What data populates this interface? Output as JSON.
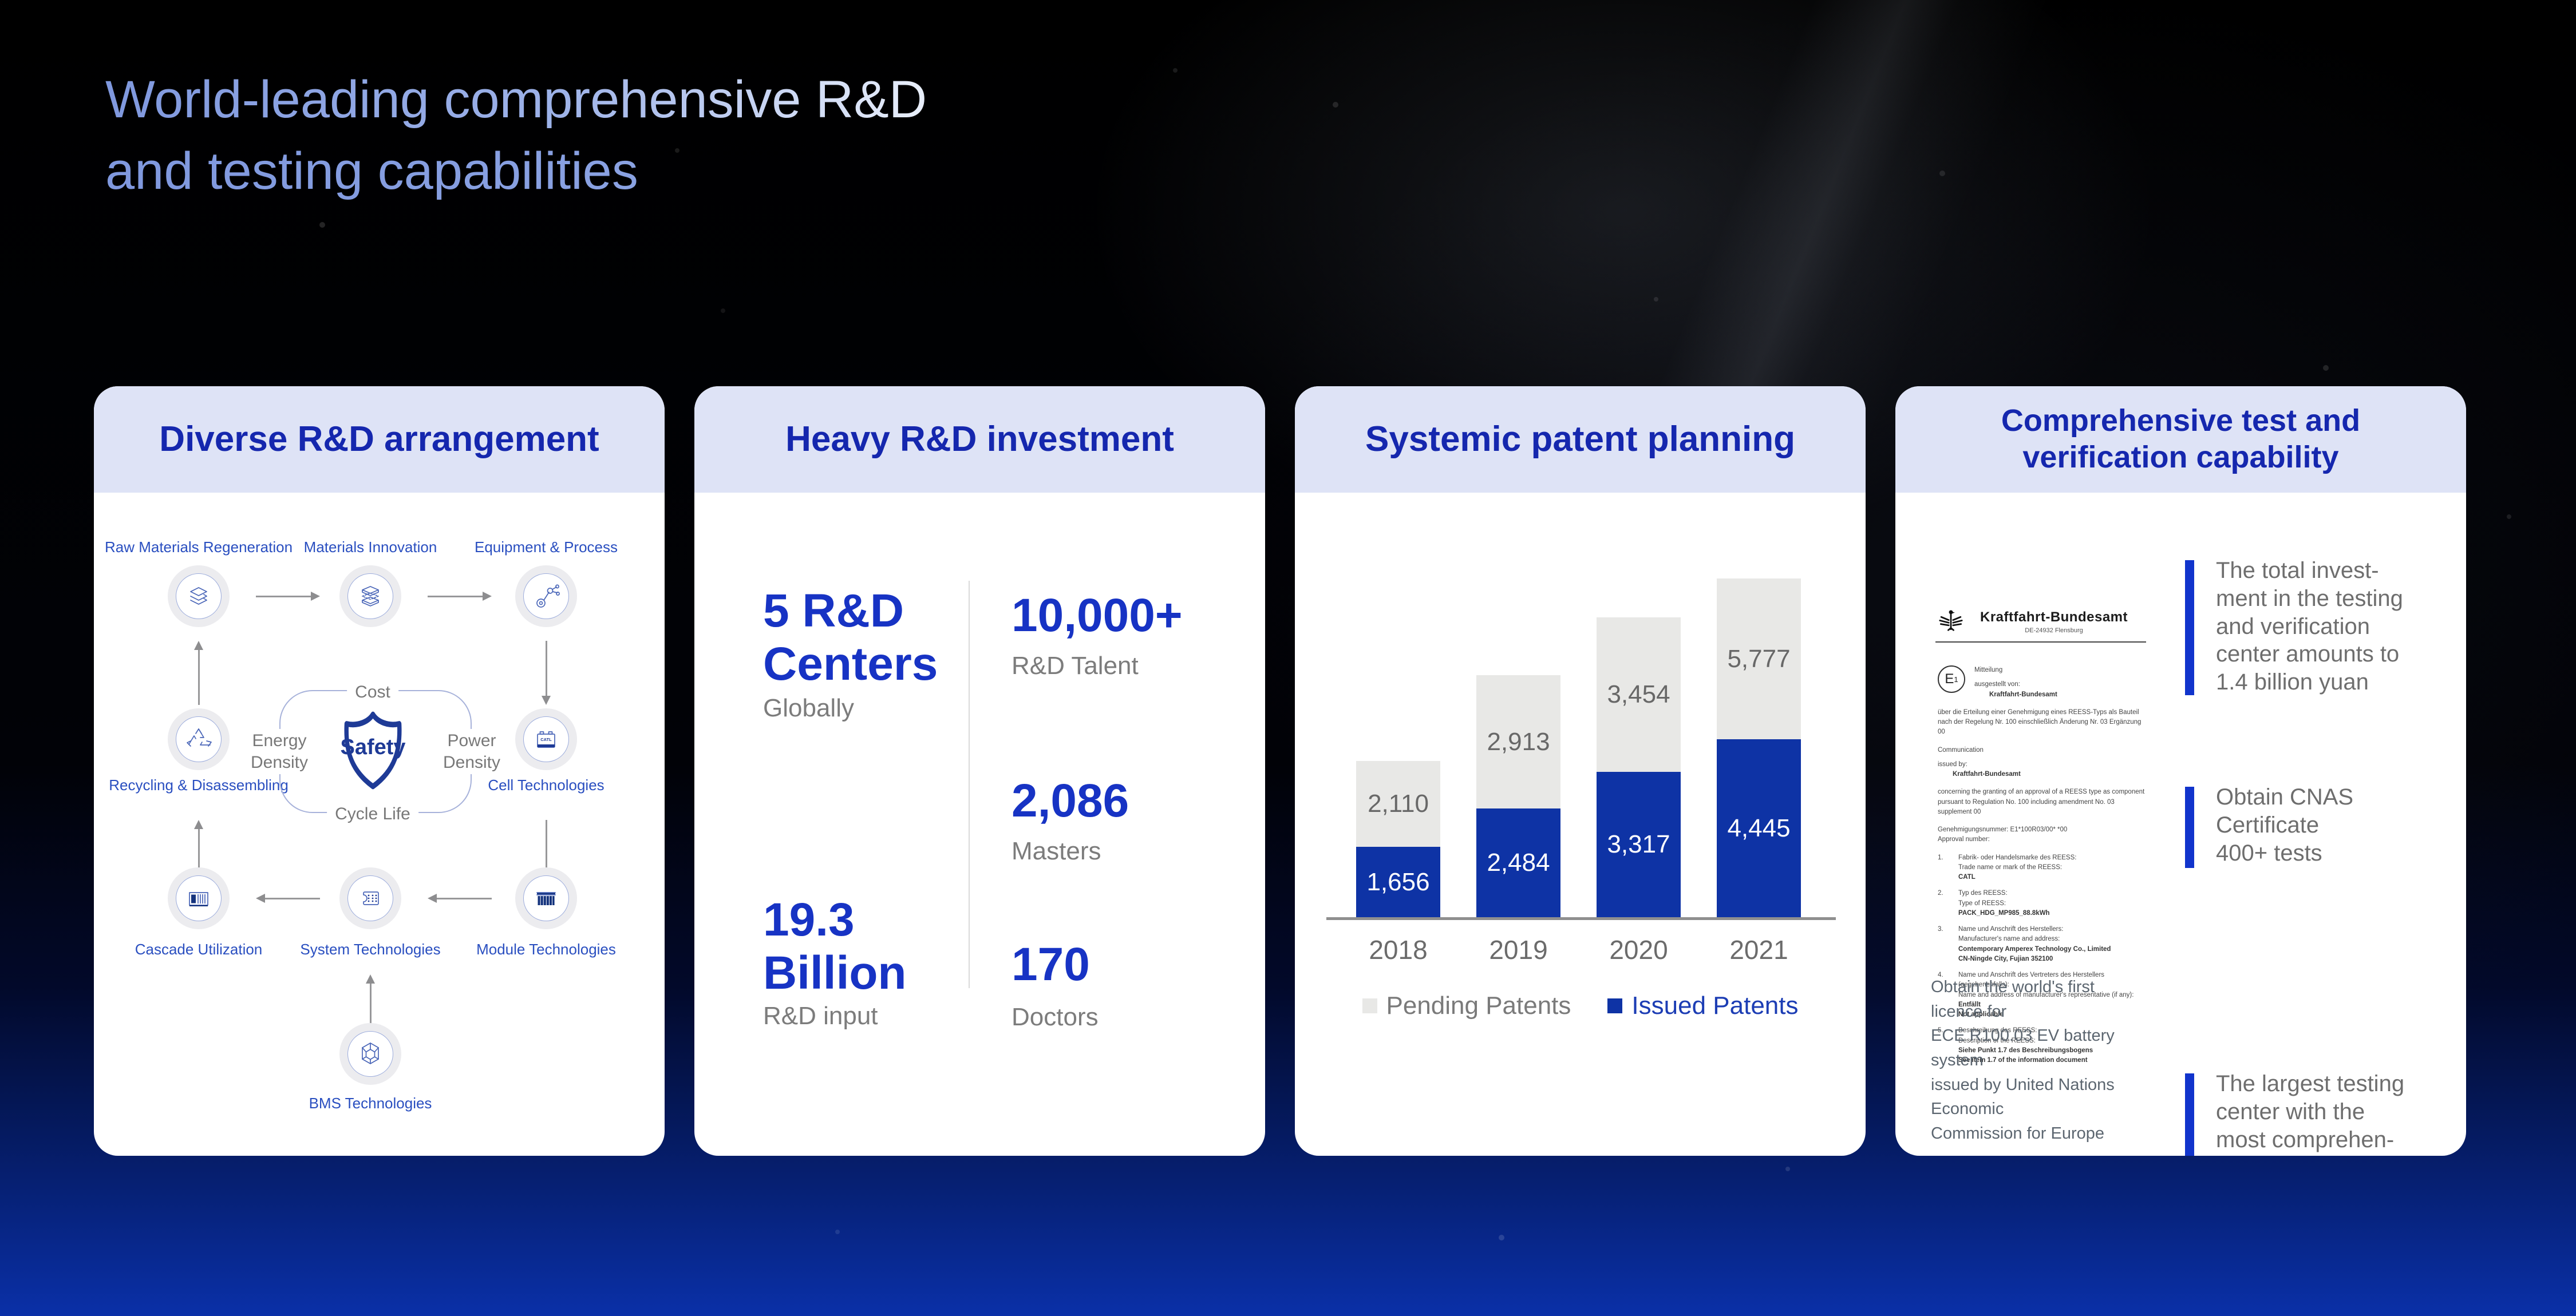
{
  "title": {
    "line1": "World-leading comprehensive R&D",
    "line2": "and testing capabilities"
  },
  "colors": {
    "card_header_bg": "#dee3f6",
    "card_title_blue": "#1527ae",
    "stat_blue": "#1733c4",
    "issued_bar_blue": "#0e33a5",
    "pending_bar_gray": "#e8e8e6",
    "bullet_bar_blue": "#1134cc",
    "diagram_label_blue": "#2a4fc0",
    "bottom_gradient_blue": "#0a30a8"
  },
  "arrangement": {
    "title": "Diverse R&D arrangement",
    "nodes": {
      "raw": "Raw Materials Regeneration",
      "materials": "Materials Innovation",
      "equipment": "Equipment & Process",
      "recycling": "Recycling & Disassembling",
      "cell": "Cell Technologies",
      "cascade": "Cascade Utilization",
      "system": "System Technologies",
      "module": "Module Technologies",
      "bms": "BMS Technologies"
    },
    "center": {
      "top": "Cost",
      "left": "Energy Density",
      "right": "Power Density",
      "bottom": "Cycle Life",
      "shield": "Safety"
    },
    "battery_label": "CATL"
  },
  "investment": {
    "title": "Heavy R&D investment",
    "stats": [
      {
        "value": "5 R&D Centers",
        "label": "Globally"
      },
      {
        "value": "10,000+",
        "label": "R&D Talent"
      },
      {
        "value": "2,086",
        "label": "Masters"
      },
      {
        "value": "19.3 Billion",
        "label": "R&D input"
      },
      {
        "value": "170",
        "label": "Doctors"
      }
    ]
  },
  "patents": {
    "title": "Systemic patent planning",
    "chart_data": {
      "type": "bar",
      "stacked": true,
      "categories": [
        "2018",
        "2019",
        "2020",
        "2021"
      ],
      "series": [
        {
          "name": "Issued Patents",
          "values": [
            1656,
            2484,
            3317,
            4445
          ],
          "color": "#0e33a5",
          "label_color": "#1c3db4"
        },
        {
          "name": "Pending Patents",
          "values": [
            2110,
            2913,
            3454,
            5777
          ],
          "color": "#e8e8e6",
          "label_color": "#7a7a7a"
        }
      ],
      "legend_position": "bottom",
      "value_labels": true,
      "grid": false
    }
  },
  "testing": {
    "title": "Comprehensive test and\nverification capability",
    "bullets": [
      "The total invest-\nment in the testing\nand verification\ncenter amounts to\n1.4 billion yuan",
      "Obtain CNAS\nCertificate\n400+ tests",
      "The largest testing\ncenter with the\nmost comprehen-\nsive testing capa-\nbility in the world"
    ],
    "footnote": "Obtain the world's first licence for\nECE R100.03 EV battery system\nissued by United Nations Economic\nCommission for Europe",
    "certificate": {
      "authority": "Kraftfahrt-Bundesamt",
      "address": "DE-24932 Flensburg",
      "mark": "E",
      "mark_sub": "1",
      "mitteilung_label": "Mitteilung",
      "issued_de_label": "ausgestellt von:",
      "issued_de_value": "Kraftfahrt-Bundesamt",
      "subject_de": "über die Erteilung einer Genehmigung eines REESS-Typs als Bauteil nach der Regelung Nr. 100 einschließlich Änderung Nr. 03 Ergänzung 00",
      "communication_label": "Communication",
      "issued_en_label": "issued by:",
      "issued_en_value": "Kraftfahrt-Bundesamt",
      "subject_en": "concerning the granting of an approval of a REESS type as component pursuant to Regulation No. 100 including amendment No. 03 supplement 00",
      "approval_de": "Genehmigungsnummer: E1*100R03/00*      *00",
      "approval_en": "Approval number:",
      "items": [
        {
          "no": "1.",
          "lines": [
            "Fabrik- oder Handelsmarke des REESS:",
            "Trade name or mark of the REESS:"
          ],
          "bold": [
            "CATL"
          ]
        },
        {
          "no": "2.",
          "lines": [
            "Typ des REESS:",
            "Type of REESS:"
          ],
          "bold": [
            "PACK_HDG_MP985_88.8kWh"
          ]
        },
        {
          "no": "3.",
          "lines": [
            "Name und Anschrift des Herstellers:",
            "Manufacturer's name and address:"
          ],
          "bold": [
            "Contemporary Amperex Technology Co., Limited",
            "CN-Ningde City, Fujian 352100"
          ]
        },
        {
          "no": "4.",
          "lines": [
            "Name und Anschrift des Vertreters des Herstellers (gegebenenfalls):",
            "Name and address of manufacturer's representative (if any):"
          ],
          "bold": [
            "Entfällt",
            "Not applicable"
          ]
        },
        {
          "no": "5.",
          "lines": [
            "Beschreibung des REESS:",
            "Description of the REESS:"
          ],
          "bold": [
            "Siehe Punkt 1.7 des Beschreibungsbogens",
            "See item 1.7 of the information document"
          ]
        }
      ]
    }
  }
}
